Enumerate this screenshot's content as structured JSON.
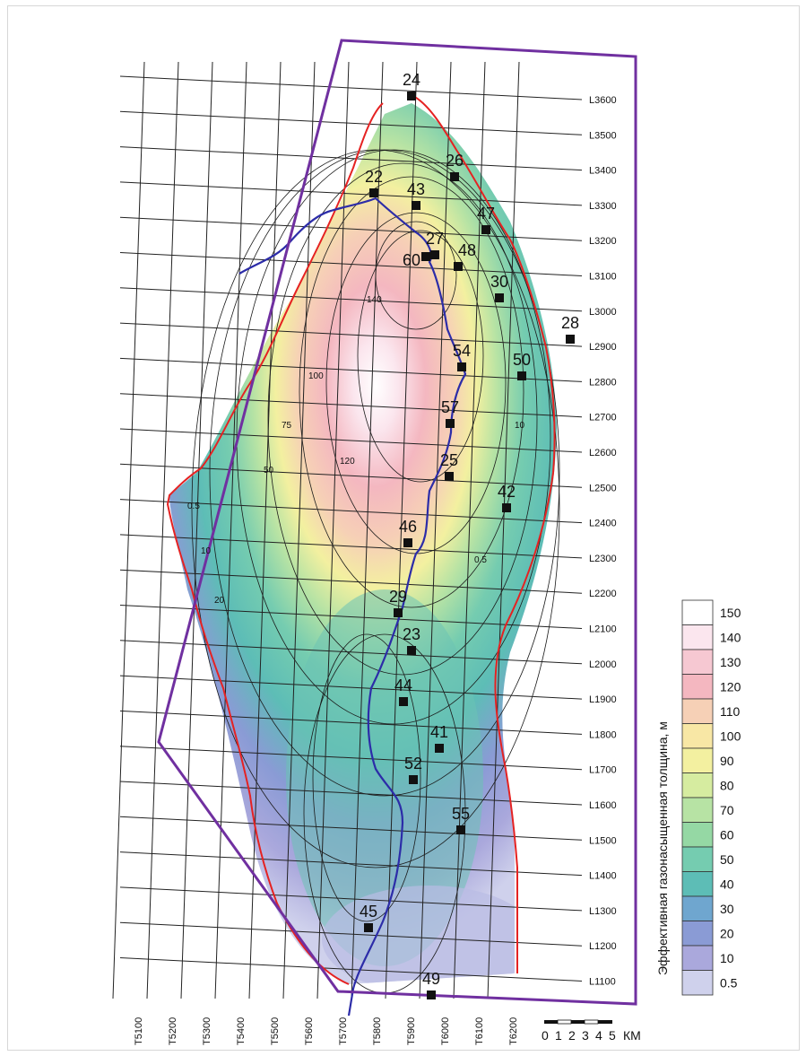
{
  "map": {
    "legend_title": "Эффективная газонасыщенная толщина, м",
    "legend_values": [
      "150",
      "140",
      "130",
      "120",
      "110",
      "100",
      "90",
      "80",
      "70",
      "60",
      "50",
      "40",
      "30",
      "20",
      "10",
      "0.5"
    ],
    "legend_colors": [
      "#ffffff",
      "#fbe6ee",
      "#f6c8d2",
      "#f4b7c0",
      "#f6d0b6",
      "#f8e7a5",
      "#f3f0a0",
      "#d6eca0",
      "#b7e3a4",
      "#95d8a4",
      "#75ccb0",
      "#5dbdb6",
      "#6fa6cf",
      "#8a9bd5",
      "#aaa8dc",
      "#cfd1ec"
    ],
    "row_labels": [
      "L3600",
      "L3500",
      "L3400",
      "L3300",
      "L3200",
      "L3100",
      "L3000",
      "L2900",
      "L2800",
      "L2700",
      "L2600",
      "L2500",
      "L2400",
      "L2300",
      "L2200",
      "L2100",
      "L2000",
      "L1900",
      "L1800",
      "L1700",
      "L1600",
      "L1500",
      "L1400",
      "L1300",
      "L1200",
      "L1100"
    ],
    "col_labels": [
      "T5100",
      "T5200",
      "T5300",
      "T5400",
      "T5500",
      "T5600",
      "T5700",
      "T5800",
      "T5900",
      "T6000",
      "T6100",
      "T6200"
    ],
    "scale": {
      "ticks": [
        "0",
        "1",
        "2",
        "3",
        "4",
        "5"
      ],
      "unit": "КМ"
    },
    "wells": [
      "24",
      "26",
      "22",
      "43",
      "47",
      "27",
      "60",
      "48",
      "30",
      "28",
      "54",
      "50",
      "57",
      "25",
      "42",
      "46",
      "29",
      "23",
      "44",
      "41",
      "52",
      "55",
      "45",
      "49"
    ],
    "contour_labels": [
      "0.5",
      "10",
      "20",
      "50",
      "75",
      "100",
      "120",
      "140"
    ],
    "colors": {
      "boundary": "#7030a0",
      "zero_line": "#e52222",
      "river": "#2c2ca8",
      "grid": "#222222"
    }
  }
}
